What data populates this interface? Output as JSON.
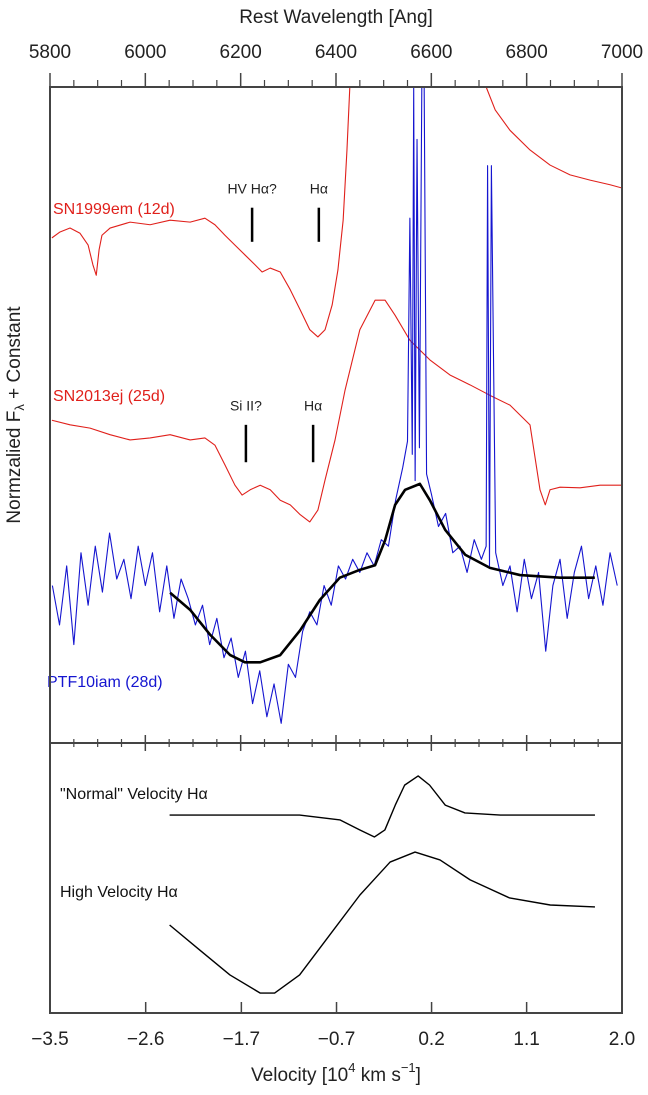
{
  "chart_data": [
    {
      "type": "line",
      "xlabel": "Rest Wavelength [Ang]",
      "ylabel": [
        "Normzalied F",
        "λ",
        " + Constant"
      ],
      "xlim": [
        5800,
        7000
      ],
      "xticks": [
        5800,
        6000,
        6200,
        6400,
        6600,
        6800,
        7000
      ],
      "xminorticks": [
        5850,
        5900,
        5950,
        6050,
        6100,
        6150,
        6250,
        6300,
        6350,
        6450,
        6500,
        6550,
        6650,
        6700,
        6750,
        6850,
        6900,
        6950
      ],
      "ylim": [
        0,
        100
      ],
      "series": [
        {
          "name": "SN1999em (12d)",
          "color": "#e0201b",
          "x": [
            5804,
            5821,
            5842,
            5863,
            5880,
            5890,
            5897,
            5903,
            5909,
            5926,
            5968,
            6010,
            6052,
            6094,
            6125,
            6146,
            6167,
            6188,
            6209,
            6230,
            6245,
            6262,
            6283,
            6304,
            6325,
            6345,
            6362,
            6377,
            6392,
            6404,
            6415,
            6423,
            6429,
            null,
            6715,
            6734,
            6765,
            6807,
            6849,
            6891,
            6933,
            6975,
            7000
          ],
          "values": [
            77.0,
            77.9,
            78.5,
            77.7,
            75.9,
            72.9,
            71.3,
            75.2,
            77.4,
            78.5,
            79.4,
            79.0,
            79.7,
            79.4,
            80.0,
            79.0,
            77.4,
            75.9,
            74.4,
            72.9,
            71.8,
            72.4,
            71.8,
            69.1,
            66.0,
            63.0,
            61.9,
            63.0,
            66.8,
            72.1,
            79.7,
            90.4,
            100,
            null,
            100,
            96.5,
            93.4,
            90.4,
            88.1,
            86.6,
            85.8,
            85.1,
            84.6
          ]
        },
        {
          "name": "SN2013ej (25d)",
          "color": "#e0201b",
          "x": [
            5804,
            5842,
            5884,
            5926,
            5968,
            6010,
            6052,
            6094,
            6125,
            6146,
            6167,
            6188,
            6203,
            6220,
            6241,
            6262,
            6283,
            6304,
            6325,
            6345,
            6362,
            6377,
            6398,
            6419,
            6450,
            6482,
            6503,
            6524,
            6555,
            6597,
            6639,
            6681,
            6723,
            6765,
            6807,
            6828,
            6839,
            6849,
            6870,
            6912,
            6954,
            7000
          ],
          "values": [
            49.2,
            48.5,
            48.0,
            47.0,
            46.2,
            46.5,
            47.0,
            46.2,
            46.5,
            45.4,
            42.4,
            39.3,
            37.8,
            38.6,
            39.3,
            38.6,
            37.0,
            36.3,
            34.8,
            33.7,
            35.5,
            40.1,
            46.2,
            53.8,
            63.0,
            67.5,
            67.5,
            65.2,
            61.4,
            58.4,
            56.1,
            54.6,
            53.0,
            51.5,
            48.5,
            38.6,
            36.3,
            38.6,
            39.0,
            38.9,
            39.3,
            39.3
          ]
        },
        {
          "name": "PTF10iam (28d)",
          "color": "#1515d0",
          "x": [
            5805,
            5820,
            5835,
            5850,
            5865,
            5880,
            5895,
            5910,
            5925,
            5940,
            5955,
            5970,
            5985,
            6000,
            6015,
            6030,
            6045,
            6060,
            6075,
            6090,
            6105,
            6120,
            6135,
            6150,
            6165,
            6180,
            6195,
            6210,
            6225,
            6240,
            6255,
            6270,
            6285,
            6300,
            6315,
            6330,
            6345,
            6360,
            6375,
            6390,
            6405,
            6420,
            6435,
            6450,
            6465,
            6480,
            6495,
            6510,
            6525,
            6540,
            6550,
            6555,
            6560,
            6563,
            6566,
            6570,
            6575,
            6580,
            6585,
            6590,
            6600,
            6615,
            6630,
            6645,
            6660,
            6675,
            6690,
            6705,
            6715,
            6718,
            6722,
            6726,
            6735,
            6750,
            6765,
            6780,
            6795,
            6810,
            6825,
            6840,
            6855,
            6870,
            6885,
            6900,
            6915,
            6930,
            6945,
            6960,
            6975,
            6990
          ],
          "values": [
            24,
            18,
            27,
            15,
            29,
            21,
            30,
            23,
            32,
            25,
            28,
            22,
            30,
            24,
            29,
            20,
            27,
            19,
            25,
            22,
            18,
            21,
            15,
            19,
            13,
            16,
            10,
            14,
            6,
            11,
            4,
            9,
            3,
            12,
            10,
            17,
            20,
            18,
            24,
            21,
            27,
            25,
            28,
            26,
            29,
            27,
            31,
            30,
            37,
            42,
            46,
            80,
            44,
            100,
            40,
            92,
            45,
            100,
            100,
            41,
            38,
            33,
            35,
            29,
            30,
            26,
            31,
            28,
            30,
            88,
            27,
            88,
            29,
            24,
            27,
            20,
            28,
            22,
            26,
            14,
            24,
            28,
            19,
            26,
            30,
            22,
            27,
            21,
            29,
            24
          ]
        },
        {
          "color": "#000000",
          "x": [
            6052,
            6094,
            6136,
            6178,
            6209,
            6241,
            6283,
            6325,
            6366,
            6408,
            6450,
            6482,
            6503,
            6524,
            6545,
            6576,
            6597,
            6629,
            6671,
            6723,
            6786,
            6870,
            6943
          ],
          "values": [
            22.9,
            20.3,
            16.5,
            13.4,
            12.3,
            12.3,
            13.4,
            17.2,
            21.8,
            25.2,
            26.4,
            27.1,
            30.9,
            36.3,
            38.6,
            39.5,
            37.0,
            32.5,
            28.7,
            26.7,
            25.6,
            25.2,
            25.2
          ]
        }
      ],
      "annotations": [
        {
          "text": "HV Hα?",
          "x": 6224,
          "y": [
            76.4,
            81.6
          ]
        },
        {
          "text": "Hα",
          "x": 6364,
          "y": [
            76.4,
            81.6
          ]
        },
        {
          "text": "Si II?",
          "x": 6211,
          "y": [
            42.8,
            48.5
          ]
        },
        {
          "text": "Hα",
          "x": 6352,
          "y": [
            42.8,
            48.5
          ]
        }
      ]
    },
    {
      "type": "line",
      "xlabel": [
        "Velocity [10",
        "4",
        " km s",
        "−1",
        "]"
      ],
      "xlim": [
        -3.5,
        2.0
      ],
      "xticks": [
        {
          "value": -3.5,
          "label": "−3.5"
        },
        {
          "value": -2.58,
          "label": "−2.6"
        },
        {
          "value": -1.66,
          "label": "−1.7"
        },
        {
          "value": -0.745,
          "label": "−0.7"
        },
        {
          "value": 0.169,
          "label": "0.2"
        },
        {
          "value": 1.083,
          "label": "1.1"
        },
        {
          "value": 2.0,
          "label": "2.0"
        }
      ],
      "ylim": [
        0,
        100
      ],
      "series": [
        {
          "name": "\"Normal\" Velocity Hα",
          "color": "#000000",
          "x": [
            -2.35,
            -1.1,
            -0.71,
            -0.52,
            -0.38,
            -0.28,
            -0.18,
            -0.09,
            0.04,
            0.15,
            0.3,
            0.49,
            0.83,
            1.74
          ],
          "values": [
            73.3,
            73.3,
            71.5,
            67.8,
            65.2,
            67.8,
            77.0,
            84.4,
            87.8,
            84.4,
            77.0,
            74.1,
            73.3,
            73.3
          ]
        },
        {
          "name": "High Velocity Hα",
          "color": "#000000",
          "x": [
            -2.35,
            -2.06,
            -1.77,
            -1.48,
            -1.34,
            -1.1,
            -0.81,
            -0.52,
            -0.23,
            0.01,
            0.25,
            0.54,
            0.92,
            1.31,
            1.74
          ],
          "values": [
            32.6,
            23.3,
            14.1,
            7.4,
            7.4,
            14.1,
            28.9,
            43.7,
            55.9,
            59.6,
            56.7,
            49.3,
            42.6,
            40.0,
            39.3
          ]
        }
      ]
    }
  ]
}
